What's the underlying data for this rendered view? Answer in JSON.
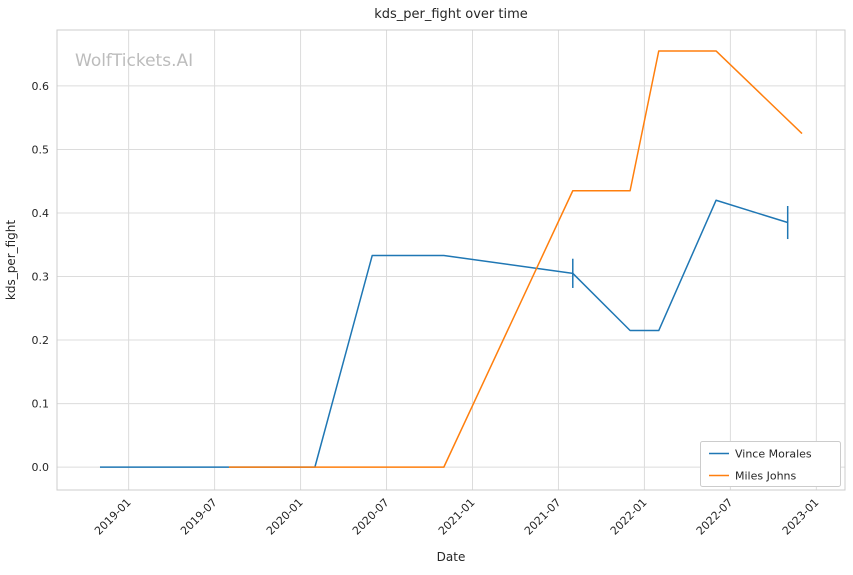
{
  "chart_data": {
    "type": "line",
    "title": "kds_per_fight over time",
    "xlabel": "Date",
    "ylabel": "kds_per_fight",
    "watermark": "WolfTickets.AI",
    "grid": true,
    "legend_position": "lower right",
    "x_tick_labels": [
      "2019-01",
      "2019-07",
      "2020-01",
      "2020-07",
      "2021-01",
      "2021-07",
      "2022-01",
      "2022-07",
      "2023-01"
    ],
    "y_tick_labels": [
      "0.0",
      "0.1",
      "0.2",
      "0.3",
      "0.4",
      "0.5",
      "0.6"
    ],
    "xlim": [
      "2018-08",
      "2023-03"
    ],
    "ylim": [
      -0.036,
      0.688
    ],
    "colors": {
      "vince_morales": "#1f77b4",
      "miles_johns": "#ff7f0e",
      "gridline": "#dcdcdc",
      "spine": "#cccccc"
    },
    "series": [
      {
        "name": "Vince Morales",
        "color": "#1f77b4",
        "points": [
          {
            "date": "2018-11",
            "value": 0.0
          },
          {
            "date": "2020-02",
            "value": 0.0
          },
          {
            "date": "2020-06",
            "value": 0.333
          },
          {
            "date": "2020-11",
            "value": 0.333
          },
          {
            "date": "2021-08",
            "value": 0.305
          },
          {
            "date": "2021-12",
            "value": 0.215
          },
          {
            "date": "2022-02",
            "value": 0.215
          },
          {
            "date": "2022-06",
            "value": 0.42
          },
          {
            "date": "2022-11",
            "value": 0.385
          }
        ],
        "error_bars": [
          {
            "date": "2021-08",
            "value": 0.305,
            "half": 0.023
          },
          {
            "date": "2022-11",
            "value": 0.385,
            "half": 0.026
          }
        ]
      },
      {
        "name": "Miles Johns",
        "color": "#ff7f0e",
        "points": [
          {
            "date": "2019-08",
            "value": 0.0
          },
          {
            "date": "2020-11",
            "value": 0.0
          },
          {
            "date": "2021-08",
            "value": 0.435
          },
          {
            "date": "2021-12",
            "value": 0.435
          },
          {
            "date": "2022-02",
            "value": 0.655
          },
          {
            "date": "2022-06",
            "value": 0.655
          },
          {
            "date": "2022-12",
            "value": 0.525
          }
        ],
        "error_bars": []
      }
    ]
  }
}
